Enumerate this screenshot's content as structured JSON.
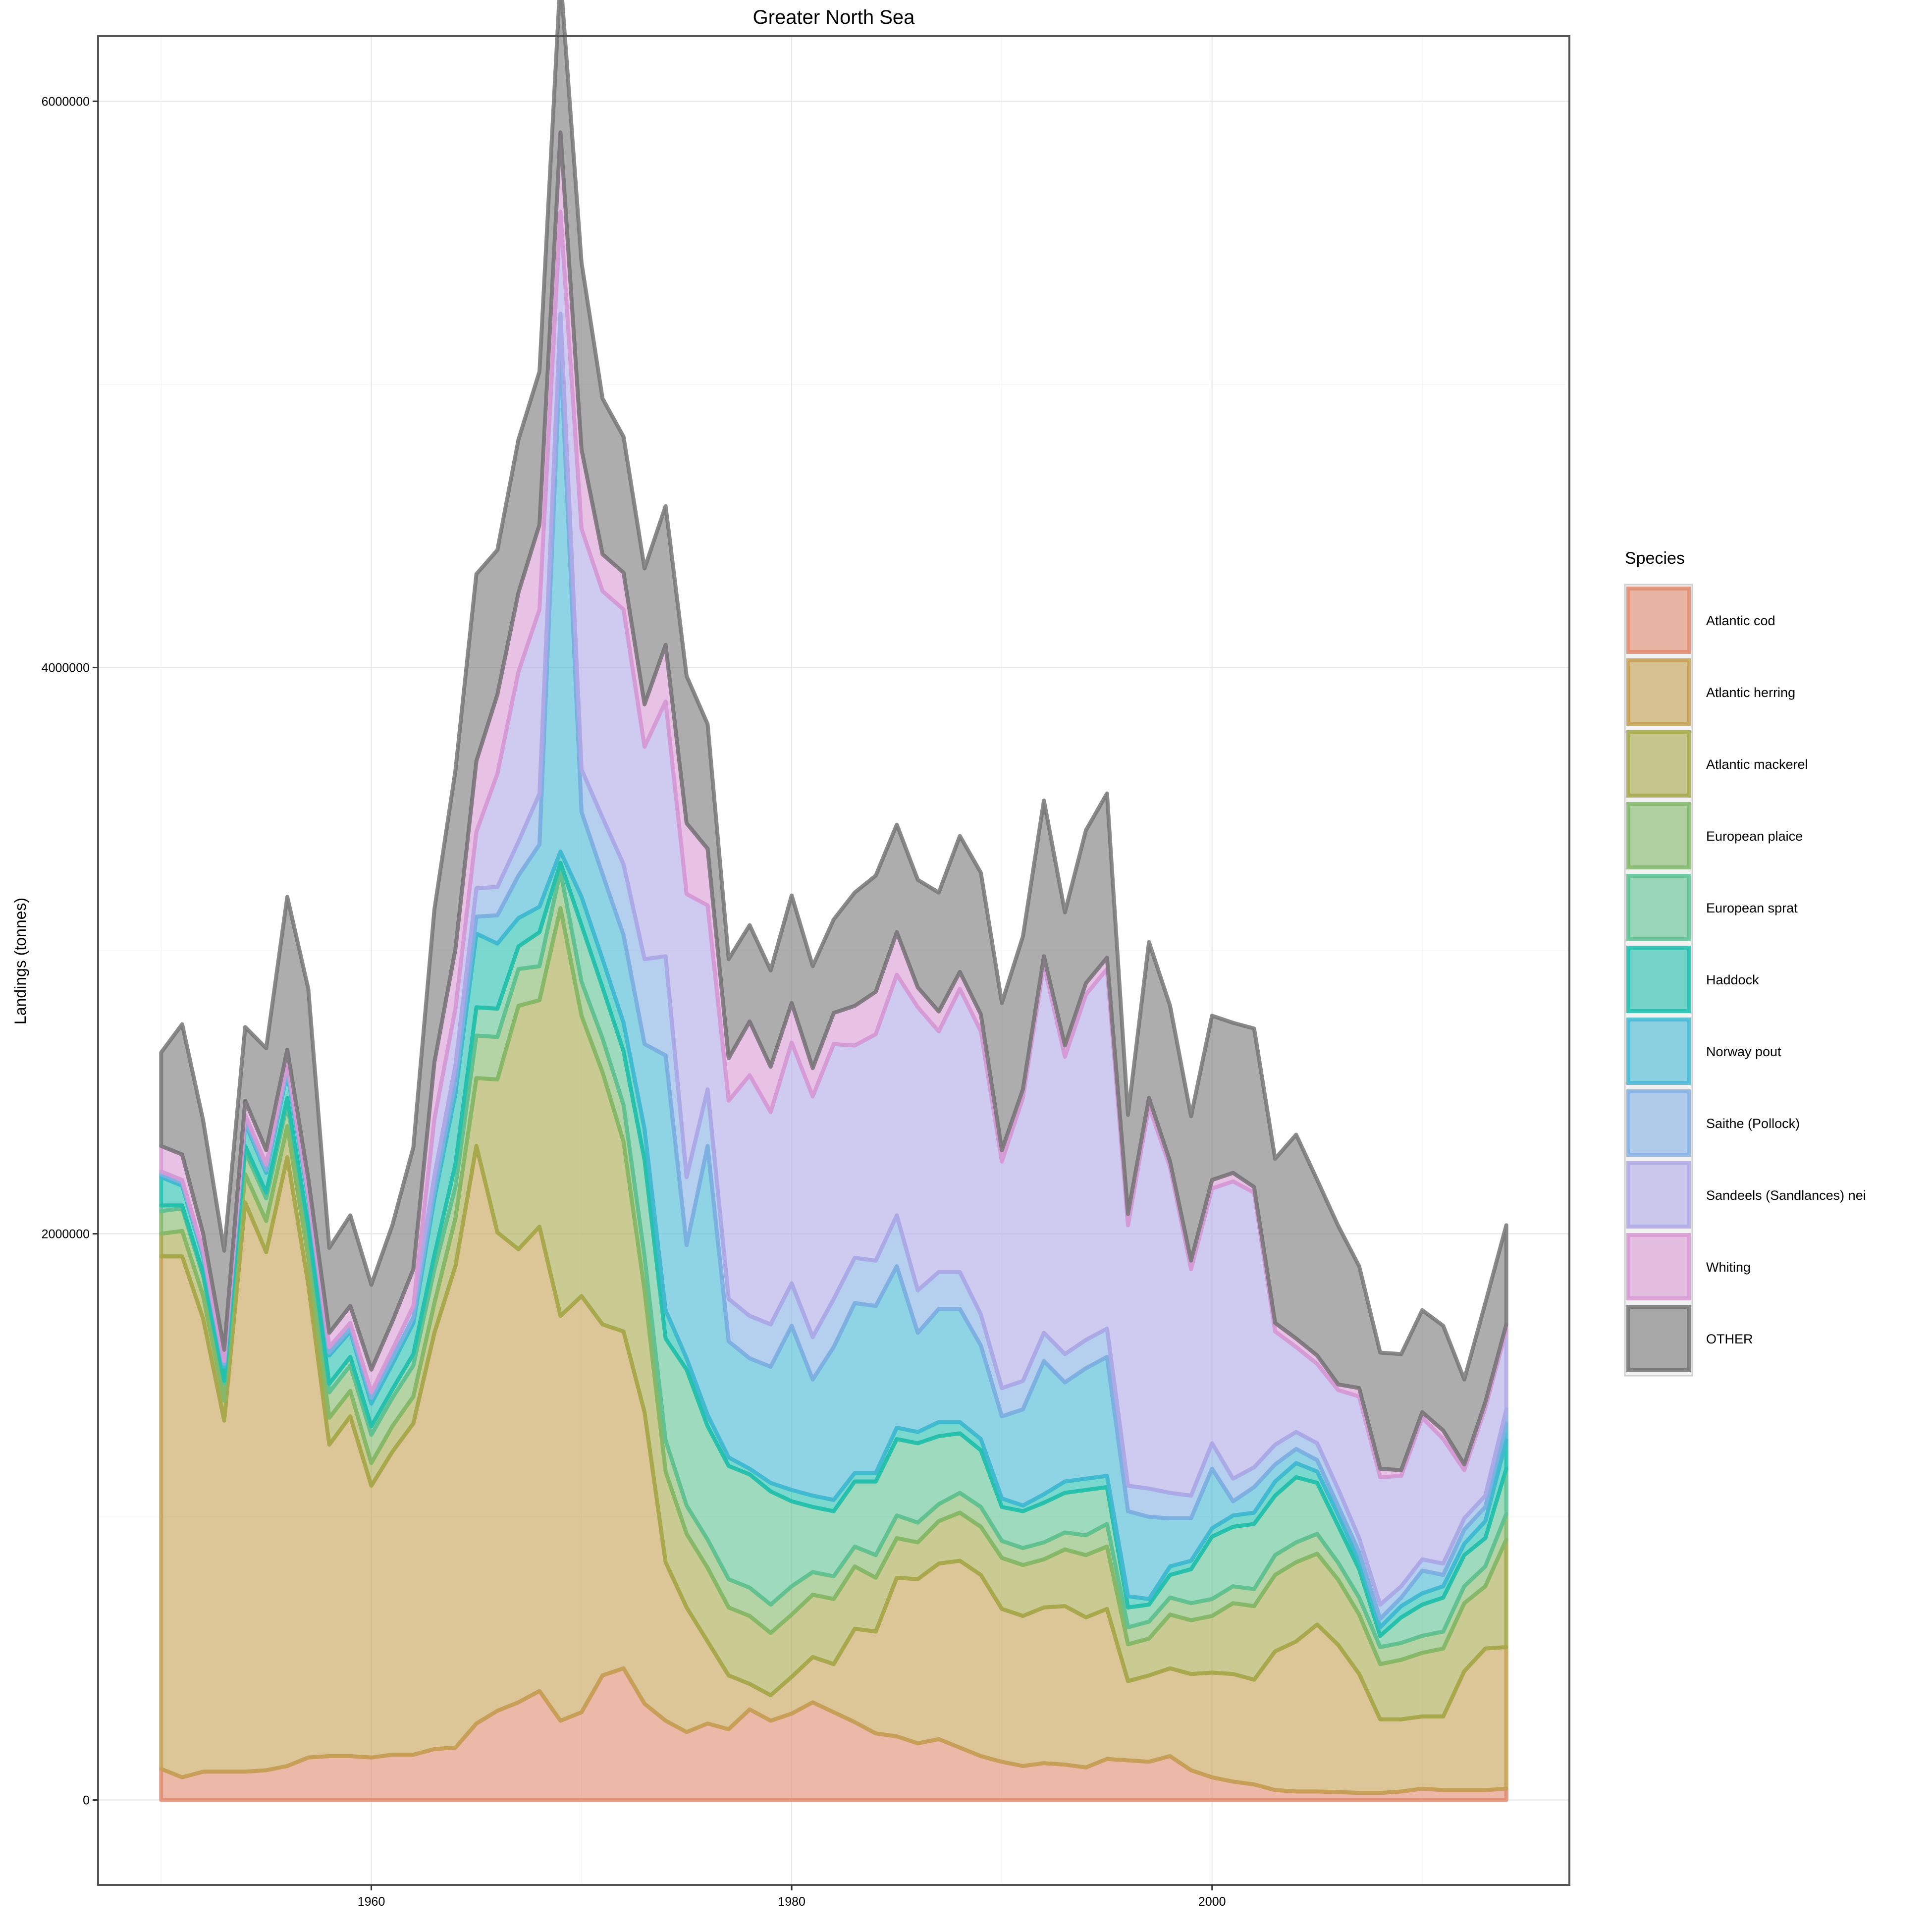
{
  "chart_data": {
    "type": "area",
    "stacked": true,
    "title": "Greater North Sea",
    "xlabel": "",
    "ylabel": "Landings (tonnes)",
    "xlim": [
      1947,
      2017
    ],
    "ylim": [
      -300000,
      6230000
    ],
    "xticks": [
      1960,
      1980,
      2000
    ],
    "xtick_labels": [
      "1960",
      "1980",
      "2000"
    ],
    "yticks": [
      0,
      2000000,
      4000000,
      6000000
    ],
    "ytick_labels": [
      "0",
      "2000000",
      "4000000",
      "6000000"
    ],
    "grid": true,
    "legend": {
      "title": "Species",
      "position": "right"
    },
    "x": [
      1950,
      1951,
      1952,
      1953,
      1954,
      1955,
      1956,
      1957,
      1958,
      1959,
      1960,
      1961,
      1962,
      1963,
      1964,
      1965,
      1966,
      1967,
      1968,
      1969,
      1970,
      1971,
      1972,
      1973,
      1974,
      1975,
      1976,
      1977,
      1978,
      1979,
      1980,
      1981,
      1982,
      1983,
      1984,
      1985,
      1986,
      1987,
      1988,
      1989,
      1990,
      1991,
      1992,
      1993,
      1994,
      1995,
      1996,
      1997,
      1998,
      1999,
      2000,
      2001,
      2002,
      2003,
      2004,
      2005,
      2006,
      2007,
      2008,
      2009,
      2010,
      2011,
      2012,
      2013,
      2014
    ],
    "series": [
      {
        "name": "Atlantic cod",
        "color": "#E08B6F",
        "values": [
          110000,
          80000,
          100000,
          100000,
          100000,
          105000,
          120000,
          150000,
          155000,
          155000,
          150000,
          160000,
          160000,
          180000,
          185000,
          270000,
          315000,
          345000,
          385000,
          280000,
          310000,
          440000,
          465000,
          340000,
          280000,
          240000,
          270000,
          250000,
          320000,
          280000,
          305000,
          345000,
          310000,
          275000,
          235000,
          225000,
          200000,
          215000,
          185000,
          155000,
          135000,
          120000,
          130000,
          125000,
          115000,
          145000,
          140000,
          135000,
          155000,
          105000,
          80000,
          65000,
          55000,
          35000,
          30000,
          30000,
          28000,
          25000,
          25000,
          30000,
          40000,
          35000,
          35000,
          35000,
          40000
        ]
      },
      {
        "name": "Atlantic herring",
        "color": "#C4A054",
        "values": [
          1810000,
          1840000,
          1600000,
          1240000,
          2010000,
          1830000,
          2150000,
          1670000,
          1100000,
          1200000,
          960000,
          1070000,
          1170000,
          1470000,
          1700000,
          2040000,
          1690000,
          1600000,
          1640000,
          1430000,
          1470000,
          1240000,
          1190000,
          1030000,
          560000,
          440000,
          290000,
          190000,
          90000,
          90000,
          130000,
          160000,
          170000,
          330000,
          360000,
          560000,
          580000,
          620000,
          660000,
          640000,
          540000,
          530000,
          550000,
          560000,
          530000,
          530000,
          280000,
          305000,
          310000,
          340000,
          370000,
          380000,
          370000,
          490000,
          530000,
          590000,
          520000,
          420000,
          260000,
          255000,
          255000,
          260000,
          420000,
          500000,
          500000
        ]
      },
      {
        "name": "Atlantic mackerel",
        "color": "#A5A84A",
        "values": [
          80000,
          90000,
          80000,
          70000,
          100000,
          110000,
          110000,
          95000,
          95000,
          90000,
          80000,
          90000,
          95000,
          105000,
          170000,
          240000,
          540000,
          860000,
          800000,
          1440000,
          990000,
          890000,
          670000,
          430000,
          320000,
          260000,
          260000,
          240000,
          240000,
          220000,
          220000,
          220000,
          230000,
          220000,
          190000,
          140000,
          130000,
          150000,
          170000,
          170000,
          180000,
          180000,
          170000,
          200000,
          220000,
          220000,
          130000,
          130000,
          190000,
          190000,
          200000,
          250000,
          260000,
          270000,
          280000,
          250000,
          230000,
          210000,
          195000,
          210000,
          225000,
          240000,
          240000,
          220000,
          380000
        ]
      },
      {
        "name": "European plaice",
        "color": "#82B86A",
        "values": [
          80000,
          80000,
          70000,
          60000,
          80000,
          80000,
          80000,
          90000,
          90000,
          90000,
          100000,
          100000,
          110000,
          120000,
          110000,
          150000,
          150000,
          130000,
          120000,
          130000,
          120000,
          120000,
          130000,
          120000,
          110000,
          100000,
          100000,
          100000,
          100000,
          100000,
          100000,
          80000,
          80000,
          70000,
          80000,
          80000,
          70000,
          60000,
          70000,
          70000,
          60000,
          60000,
          60000,
          60000,
          70000,
          80000,
          60000,
          60000,
          60000,
          60000,
          60000,
          60000,
          60000,
          70000,
          70000,
          70000,
          60000,
          60000,
          60000,
          60000,
          60000,
          60000,
          60000,
          70000,
          90000
        ]
      },
      {
        "name": "European sprat",
        "color": "#5DC293",
        "values": [
          20000,
          10000,
          10000,
          10000,
          20000,
          20000,
          20000,
          20000,
          30000,
          30000,
          30000,
          30000,
          40000,
          50000,
          80000,
          100000,
          100000,
          80000,
          120000,
          30000,
          200000,
          180000,
          190000,
          340000,
          360000,
          480000,
          400000,
          400000,
          400000,
          400000,
          300000,
          230000,
          230000,
          230000,
          260000,
          270000,
          280000,
          240000,
          210000,
          200000,
          120000,
          130000,
          140000,
          140000,
          160000,
          130000,
          70000,
          60000,
          80000,
          120000,
          220000,
          210000,
          230000,
          210000,
          230000,
          180000,
          130000,
          100000,
          40000,
          90000,
          110000,
          120000,
          110000,
          100000,
          160000
        ]
      },
      {
        "name": "Haddock",
        "color": "#1FBFAE",
        "values": [
          100000,
          70000,
          60000,
          50000,
          80000,
          70000,
          90000,
          100000,
          100000,
          90000,
          80000,
          90000,
          110000,
          200000,
          250000,
          260000,
          230000,
          100000,
          90000,
          40000,
          100000,
          100000,
          100000,
          110000,
          100000,
          40000,
          40000,
          30000,
          20000,
          30000,
          40000,
          40000,
          40000,
          30000,
          30000,
          40000,
          40000,
          50000,
          40000,
          40000,
          30000,
          20000,
          30000,
          40000,
          40000,
          40000,
          40000,
          20000,
          30000,
          30000,
          30000,
          40000,
          40000,
          50000,
          50000,
          40000,
          40000,
          30000,
          30000,
          40000,
          40000,
          40000,
          40000,
          60000,
          100000
        ]
      },
      {
        "name": "Norway pout",
        "color": "#44B8D4",
        "values": [
          10000,
          10000,
          10000,
          10000,
          10000,
          10000,
          10000,
          10000,
          10000,
          10000,
          20000,
          20000,
          20000,
          30000,
          40000,
          60000,
          100000,
          150000,
          220000,
          1770000,
          300000,
          300000,
          310000,
          300000,
          900000,
          400000,
          950000,
          410000,
          390000,
          410000,
          580000,
          410000,
          540000,
          600000,
          590000,
          570000,
          350000,
          400000,
          400000,
          330000,
          290000,
          340000,
          470000,
          350000,
          390000,
          420000,
          300000,
          290000,
          170000,
          150000,
          210000,
          50000,
          90000,
          60000,
          50000,
          40000,
          30000,
          30000,
          30000,
          30000,
          80000,
          40000,
          50000,
          50000,
          60000
        ]
      },
      {
        "name": "Saithe (Pollock)",
        "color": "#83AFE2",
        "values": [
          10000,
          10000,
          10000,
          10000,
          20000,
          20000,
          20000,
          10000,
          20000,
          20000,
          20000,
          30000,
          40000,
          50000,
          60000,
          100000,
          100000,
          120000,
          180000,
          130000,
          150000,
          200000,
          250000,
          300000,
          350000,
          240000,
          200000,
          150000,
          150000,
          150000,
          150000,
          150000,
          170000,
          160000,
          160000,
          180000,
          150000,
          130000,
          130000,
          110000,
          100000,
          100000,
          100000,
          100000,
          100000,
          100000,
          90000,
          100000,
          90000,
          80000,
          90000,
          80000,
          70000,
          70000,
          60000,
          60000,
          60000,
          50000,
          50000,
          40000,
          40000,
          40000,
          40000,
          40000,
          50000
        ]
      },
      {
        "name": "Sandeels (Sandlances) nei",
        "color": "#AFA8E6",
        "values": [
          0,
          0,
          0,
          0,
          0,
          0,
          0,
          0,
          0,
          0,
          0,
          0,
          0,
          200000,
          200000,
          200000,
          400000,
          600000,
          650000,
          360000,
          850000,
          800000,
          900000,
          750000,
          900000,
          1000000,
          650000,
          700000,
          850000,
          750000,
          850000,
          850000,
          900000,
          750000,
          800000,
          850000,
          1000000,
          850000,
          1000000,
          1000000,
          800000,
          1000000,
          1300000,
          1050000,
          1220000,
          1270000,
          920000,
          1350000,
          1150000,
          800000,
          900000,
          1050000,
          970000,
          400000,
          300000,
          280000,
          350000,
          500000,
          450000,
          390000,
          500000,
          440000,
          170000,
          310000,
          280000
        ]
      },
      {
        "name": "Whiting",
        "color": "#D899D3",
        "values": [
          90000,
          90000,
          60000,
          40000,
          50000,
          50000,
          50000,
          50000,
          50000,
          60000,
          80000,
          100000,
          130000,
          200000,
          210000,
          250000,
          280000,
          280000,
          300000,
          280000,
          280000,
          130000,
          130000,
          150000,
          200000,
          250000,
          200000,
          150000,
          190000,
          160000,
          140000,
          100000,
          110000,
          140000,
          150000,
          150000,
          70000,
          70000,
          60000,
          60000,
          40000,
          30000,
          30000,
          40000,
          40000,
          40000,
          40000,
          30000,
          20000,
          30000,
          30000,
          30000,
          20000,
          30000,
          30000,
          30000,
          20000,
          30000,
          30000,
          20000,
          20000,
          30000,
          20000,
          20000,
          20000
        ]
      },
      {
        "name": "OTHER",
        "color": "#767676",
        "values": [
          330000,
          460000,
          400000,
          350000,
          260000,
          360000,
          540000,
          670000,
          300000,
          320000,
          300000,
          340000,
          430000,
          540000,
          630000,
          660000,
          510000,
          540000,
          540000,
          550000,
          660000,
          550000,
          480000,
          480000,
          490000,
          520000,
          440000,
          350000,
          340000,
          340000,
          380000,
          360000,
          330000,
          400000,
          410000,
          380000,
          380000,
          420000,
          480000,
          500000,
          520000,
          540000,
          550000,
          470000,
          540000,
          580000,
          350000,
          550000,
          550000,
          510000,
          580000,
          530000,
          560000,
          580000,
          720000,
          620000,
          560000,
          430000,
          410000,
          410000,
          360000,
          370000,
          300000,
          350000,
          350000
        ]
      }
    ]
  }
}
